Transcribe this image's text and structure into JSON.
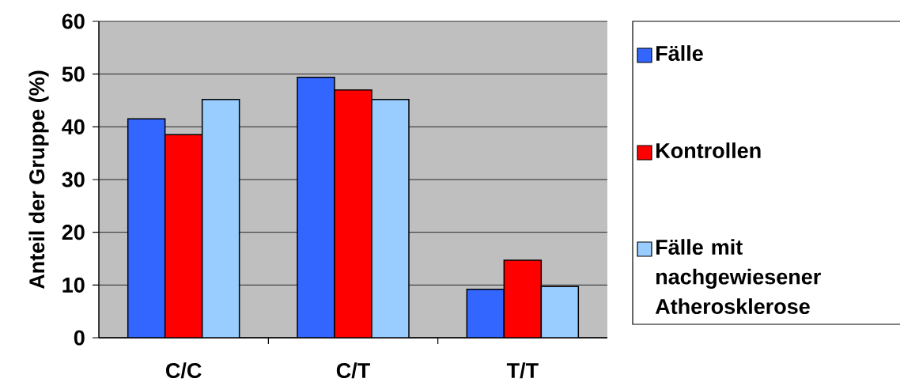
{
  "chart_data": {
    "type": "bar",
    "ylabel": "Anteil der Gruppe (%)",
    "categories": [
      "C/C",
      "C/T",
      "T/T"
    ],
    "series": [
      {
        "name": "Fälle",
        "color": "#3366ff",
        "values": [
          41.5,
          49.4,
          9.2
        ]
      },
      {
        "name": "Kontrollen",
        "color": "#ff0000",
        "values": [
          38.5,
          47.0,
          14.7
        ]
      },
      {
        "name": "Fälle mit nachgewiesener Atherosklerose",
        "color": "#99ccff",
        "values": [
          45.2,
          45.2,
          9.7
        ]
      }
    ],
    "ylim": [
      0,
      60
    ],
    "yticks": [
      0,
      10,
      20,
      30,
      40,
      50,
      60
    ],
    "grid": "y",
    "legend": "right"
  }
}
